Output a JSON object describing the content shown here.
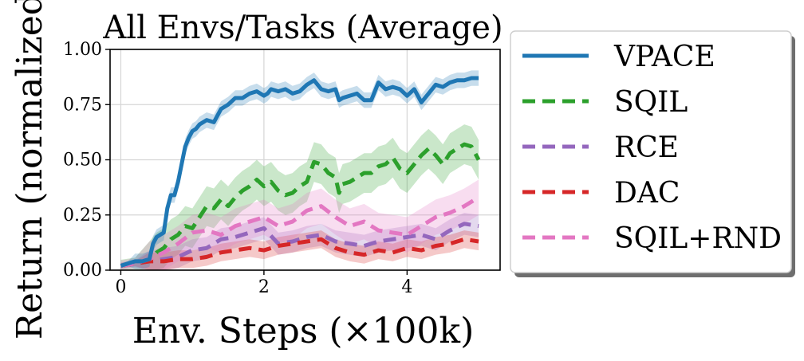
{
  "chart_data": {
    "type": "line",
    "title": "All Envs/Tasks (Average)",
    "xlabel": "Env. Steps (×100k)",
    "ylabel": "Return (normalized)",
    "xlim": [
      -0.15,
      5.3
    ],
    "ylim": [
      0,
      1.0
    ],
    "xticks": [
      0,
      2,
      4
    ],
    "xtick_labels": [
      "0",
      "2",
      "4"
    ],
    "yticks": [
      0,
      0.25,
      0.5,
      0.75,
      1.0
    ],
    "ytick_labels": [
      "0.00",
      "0.25",
      "0.50",
      "0.75",
      "1.00"
    ],
    "grid": true,
    "legend_position": "right, outside plot",
    "series": [
      {
        "name": "VPACE",
        "color": "#1f77b4",
        "style": "solid",
        "x": [
          0,
          0.1,
          0.2,
          0.3,
          0.4,
          0.45,
          0.5,
          0.55,
          0.6,
          0.65,
          0.7,
          0.75,
          0.8,
          0.85,
          0.9,
          0.95,
          1.0,
          1.05,
          1.1,
          1.2,
          1.3,
          1.4,
          1.5,
          1.6,
          1.7,
          1.8,
          1.9,
          2.0,
          2.05,
          2.1,
          2.2,
          2.3,
          2.4,
          2.5,
          2.6,
          2.7,
          2.8,
          2.9,
          3.0,
          3.05,
          3.1,
          3.2,
          3.3,
          3.4,
          3.5,
          3.6,
          3.7,
          3.8,
          3.9,
          4.0,
          4.1,
          4.2,
          4.3,
          4.4,
          4.5,
          4.6,
          4.7,
          4.8,
          4.9,
          5.0
        ],
        "y": [
          0.02,
          0.03,
          0.04,
          0.04,
          0.05,
          0.12,
          0.15,
          0.16,
          0.17,
          0.28,
          0.34,
          0.34,
          0.4,
          0.48,
          0.56,
          0.6,
          0.63,
          0.64,
          0.66,
          0.68,
          0.67,
          0.73,
          0.75,
          0.78,
          0.78,
          0.8,
          0.81,
          0.79,
          0.8,
          0.82,
          0.81,
          0.82,
          0.8,
          0.81,
          0.84,
          0.86,
          0.82,
          0.81,
          0.82,
          0.77,
          0.78,
          0.79,
          0.8,
          0.77,
          0.77,
          0.85,
          0.82,
          0.83,
          0.82,
          0.79,
          0.82,
          0.76,
          0.8,
          0.84,
          0.83,
          0.85,
          0.86,
          0.86,
          0.87,
          0.87
        ],
        "band": 0.035
      },
      {
        "name": "SQIL",
        "color": "#2ca02c",
        "style": "dashed",
        "x": [
          0,
          0.2,
          0.4,
          0.5,
          0.6,
          0.7,
          0.8,
          0.9,
          1.0,
          1.1,
          1.2,
          1.3,
          1.4,
          1.5,
          1.6,
          1.7,
          1.8,
          1.9,
          2.0,
          2.1,
          2.2,
          2.3,
          2.4,
          2.5,
          2.6,
          2.7,
          2.8,
          2.9,
          3.0,
          3.05,
          3.1,
          3.2,
          3.3,
          3.4,
          3.5,
          3.6,
          3.7,
          3.8,
          3.9,
          4.0,
          4.1,
          4.2,
          4.3,
          4.4,
          4.5,
          4.6,
          4.7,
          4.8,
          4.9,
          5.0
        ],
        "y": [
          0.02,
          0.03,
          0.04,
          0.08,
          0.1,
          0.14,
          0.16,
          0.2,
          0.19,
          0.24,
          0.29,
          0.28,
          0.32,
          0.29,
          0.33,
          0.36,
          0.38,
          0.41,
          0.38,
          0.4,
          0.36,
          0.34,
          0.35,
          0.38,
          0.4,
          0.49,
          0.48,
          0.44,
          0.42,
          0.35,
          0.39,
          0.4,
          0.42,
          0.44,
          0.44,
          0.47,
          0.48,
          0.51,
          0.46,
          0.44,
          0.48,
          0.52,
          0.55,
          0.52,
          0.48,
          0.53,
          0.55,
          0.57,
          0.56,
          0.5
        ],
        "band": 0.09
      },
      {
        "name": "RCE",
        "color": "#9467bd",
        "style": "dashed",
        "x": [
          0,
          0.2,
          0.4,
          0.6,
          0.8,
          1.0,
          1.2,
          1.4,
          1.6,
          1.8,
          2.0,
          2.2,
          2.4,
          2.6,
          2.8,
          3.0,
          3.2,
          3.4,
          3.6,
          3.8,
          4.0,
          4.2,
          4.4,
          4.6,
          4.8,
          5.0
        ],
        "y": [
          0.02,
          0.03,
          0.04,
          0.05,
          0.06,
          0.09,
          0.1,
          0.14,
          0.15,
          0.17,
          0.19,
          0.12,
          0.13,
          0.15,
          0.16,
          0.13,
          0.12,
          0.11,
          0.13,
          0.14,
          0.15,
          0.16,
          0.14,
          0.18,
          0.21,
          0.2
        ],
        "band": 0.05
      },
      {
        "name": "DAC",
        "color": "#d62728",
        "style": "dashed",
        "x": [
          0,
          0.2,
          0.4,
          0.6,
          0.8,
          1.0,
          1.2,
          1.4,
          1.6,
          1.8,
          2.0,
          2.2,
          2.4,
          2.6,
          2.8,
          3.0,
          3.2,
          3.4,
          3.6,
          3.8,
          4.0,
          4.2,
          4.4,
          4.6,
          4.8,
          5.0
        ],
        "y": [
          0.02,
          0.03,
          0.04,
          0.04,
          0.05,
          0.05,
          0.06,
          0.08,
          0.09,
          0.1,
          0.09,
          0.11,
          0.12,
          0.13,
          0.14,
          0.1,
          0.08,
          0.07,
          0.09,
          0.08,
          0.1,
          0.09,
          0.11,
          0.12,
          0.14,
          0.13
        ],
        "band": 0.04
      },
      {
        "name": "SQIL+RND",
        "color": "#e377c2",
        "style": "dashed",
        "x": [
          0,
          0.2,
          0.4,
          0.6,
          0.8,
          1.0,
          1.2,
          1.4,
          1.6,
          1.8,
          2.0,
          2.2,
          2.4,
          2.6,
          2.8,
          3.0,
          3.2,
          3.4,
          3.6,
          3.8,
          4.0,
          4.2,
          4.4,
          4.6,
          4.8,
          5.0
        ],
        "y": [
          0.02,
          0.03,
          0.05,
          0.08,
          0.12,
          0.17,
          0.18,
          0.16,
          0.2,
          0.22,
          0.24,
          0.2,
          0.22,
          0.27,
          0.29,
          0.24,
          0.2,
          0.22,
          0.18,
          0.17,
          0.16,
          0.2,
          0.24,
          0.26,
          0.29,
          0.33
        ],
        "band": 0.08
      }
    ]
  }
}
